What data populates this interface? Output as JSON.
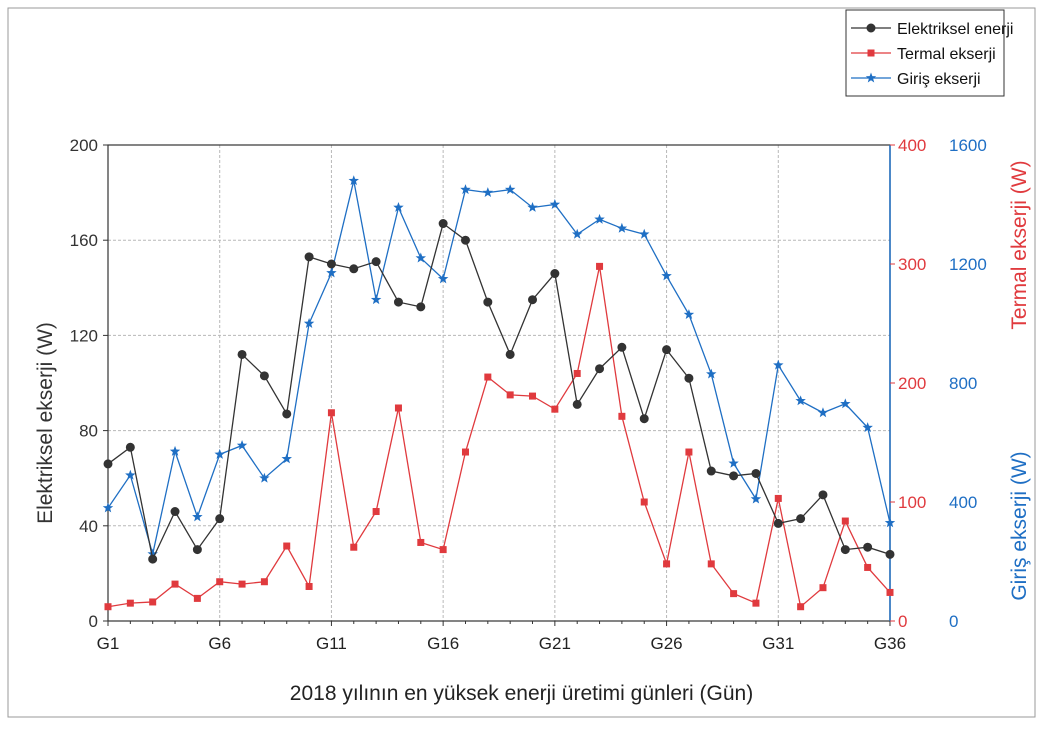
{
  "chart_data": {
    "type": "line",
    "title": "",
    "xlabel": "2018 yılının en yüksek enerji üretimi günleri (Gün)",
    "ylabel_left": "Elektriksel ekserji (W)",
    "ylabel_right1": "Termal ekserji (W)",
    "ylabel_right2": "Giriş ekserji (W)",
    "x": [
      1,
      2,
      3,
      4,
      5,
      6,
      7,
      8,
      9,
      10,
      11,
      12,
      13,
      14,
      15,
      16,
      17,
      18,
      19,
      20,
      21,
      22,
      23,
      24,
      25,
      26,
      27,
      28,
      29,
      30,
      31,
      32,
      33,
      34,
      35,
      36
    ],
    "x_ticks": [
      1,
      6,
      11,
      16,
      21,
      26,
      31,
      36
    ],
    "x_tick_labels": [
      "G1",
      "G6",
      "G11",
      "G16",
      "G21",
      "G26",
      "G31",
      "G36"
    ],
    "xlim": [
      1,
      36
    ],
    "axes": {
      "left": {
        "ylim": [
          0,
          200
        ],
        "ticks": [
          0,
          40,
          80,
          120,
          160,
          200
        ],
        "tick_labels": [
          "0",
          "40",
          "80",
          "120",
          "160",
          "200"
        ],
        "color": "#333333"
      },
      "right1": {
        "ylim": [
          0,
          400
        ],
        "ticks": [
          0,
          100,
          200,
          300,
          400
        ],
        "tick_labels": [
          "0",
          "100",
          "200",
          "300",
          "400"
        ],
        "color": "#e03a3e"
      },
      "right2": {
        "ylim": [
          0,
          1600
        ],
        "ticks": [
          0,
          400,
          800,
          1200,
          1600
        ],
        "tick_labels": [
          "0",
          "400",
          "800",
          "1200",
          "1600"
        ],
        "color": "#1f6fc4"
      }
    },
    "grid": true,
    "legend_position": "top-right",
    "series": [
      {
        "name": "Elektriksel enerji",
        "axis": "left",
        "color": "#333333",
        "marker": "circle",
        "values": [
          66,
          73,
          26,
          46,
          30,
          43,
          112,
          103,
          87,
          153,
          150,
          148,
          151,
          134,
          132,
          167,
          160,
          134,
          112,
          135,
          146,
          91,
          106,
          115,
          85,
          114,
          102,
          63,
          61,
          62,
          41,
          43,
          53,
          30,
          31,
          28
        ]
      },
      {
        "name": "Termal ekserji",
        "axis": "right1",
        "color": "#e03a3e",
        "marker": "square",
        "values": [
          12,
          15,
          16,
          31,
          19,
          33,
          31,
          33,
          63,
          29,
          175,
          62,
          92,
          179,
          66,
          60,
          142,
          205,
          190,
          189,
          178,
          208,
          298,
          172,
          100,
          48,
          142,
          48,
          23,
          15,
          103,
          12,
          28,
          84,
          45,
          24
        ]
      },
      {
        "name": "Giriş ekserji",
        "axis": "right2",
        "color": "#1f6fc4",
        "marker": "star",
        "values": [
          380,
          490,
          225,
          570,
          350,
          560,
          590,
          480,
          545,
          1000,
          1170,
          1480,
          1080,
          1390,
          1220,
          1150,
          1450,
          1440,
          1450,
          1390,
          1400,
          1300,
          1350,
          1320,
          1300,
          1160,
          1030,
          830,
          530,
          410,
          860,
          740,
          700,
          730,
          650,
          330
        ]
      }
    ]
  }
}
